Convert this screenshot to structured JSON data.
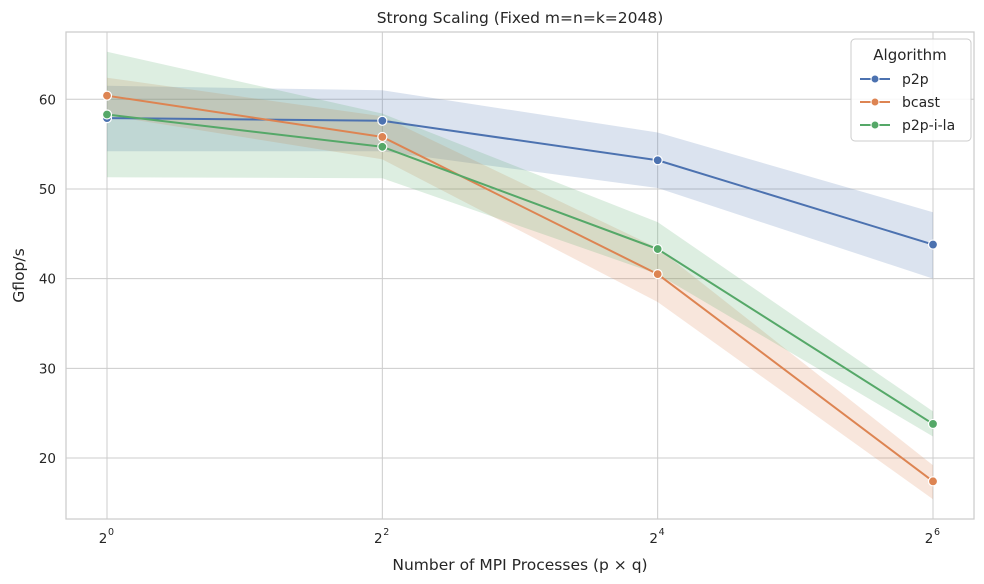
{
  "chart_data": {
    "type": "line",
    "title": "Strong Scaling (Fixed m=n=k=2048)",
    "xlabel": "Number of MPI Processes (p × q)",
    "ylabel": "Gflop/s",
    "x_scale": "log2",
    "x": [
      1,
      4,
      16,
      64
    ],
    "x_tick_labels": [
      {
        "base": "2",
        "exp": "0"
      },
      {
        "base": "2",
        "exp": "2"
      },
      {
        "base": "2",
        "exp": "4"
      },
      {
        "base": "2",
        "exp": "6"
      }
    ],
    "y_ticks": [
      20,
      30,
      40,
      50,
      60
    ],
    "y_tick_labels": [
      "20",
      "30",
      "40",
      "50",
      "60"
    ],
    "ylim": [
      13.2,
      67.5
    ],
    "grid": true,
    "legend": {
      "title": "Algorithm",
      "position": "top-right"
    },
    "series": [
      {
        "name": "p2p",
        "color": "#4c72b0",
        "values": [
          57.9,
          57.6,
          53.2,
          43.8
        ],
        "ci_low": [
          54.2,
          54.2,
          50.1,
          40.0
        ],
        "ci_high": [
          61.5,
          61.0,
          56.3,
          47.4
        ]
      },
      {
        "name": "bcast",
        "color": "#dd8452",
        "values": [
          60.4,
          55.8,
          40.5,
          17.4
        ],
        "ci_low": [
          58.2,
          53.3,
          37.4,
          15.4
        ],
        "ci_high": [
          62.4,
          58.1,
          43.4,
          19.2
        ]
      },
      {
        "name": "p2p-i-la",
        "color": "#55a868",
        "values": [
          58.3,
          54.7,
          43.3,
          23.8
        ],
        "ci_low": [
          51.3,
          51.2,
          40.5,
          22.4
        ],
        "ci_high": [
          65.3,
          58.4,
          46.3,
          25.2
        ]
      }
    ]
  }
}
